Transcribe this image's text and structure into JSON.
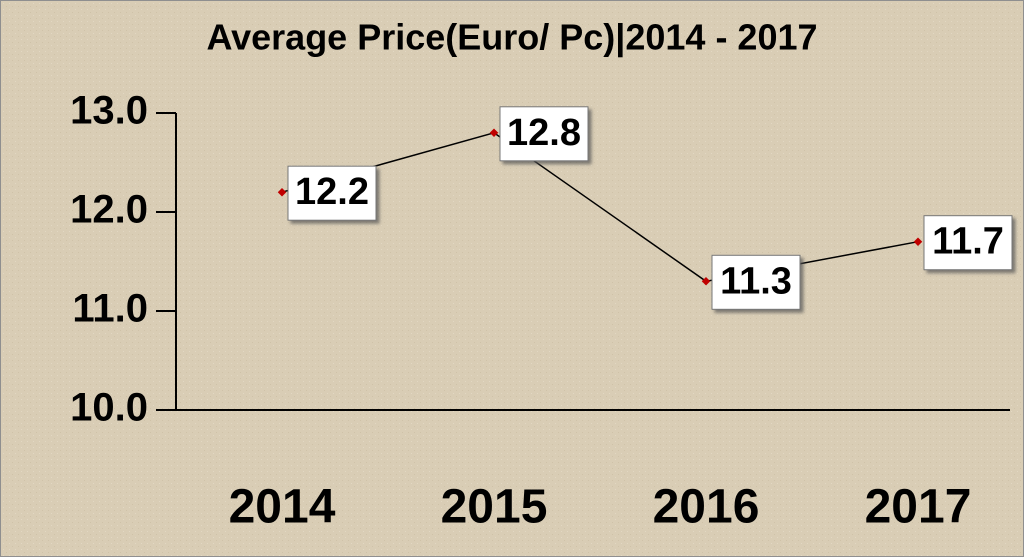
{
  "chart_data": {
    "type": "line",
    "title": "Average Price(Euro/ Pc)|2014 - 2017",
    "categories": [
      "2014",
      "2015",
      "2016",
      "2017"
    ],
    "series": [
      {
        "color": "#000000",
        "values": [
          12.2,
          12.8,
          11.3,
          11.7
        ]
      }
    ],
    "ylim": [
      10,
      13
    ],
    "yticks": [
      {
        "value": 10,
        "label": "10.0"
      },
      {
        "value": 11,
        "label": "11.0"
      },
      {
        "value": 12,
        "label": "12.0"
      },
      {
        "value": 13,
        "label": "13.0"
      }
    ]
  }
}
